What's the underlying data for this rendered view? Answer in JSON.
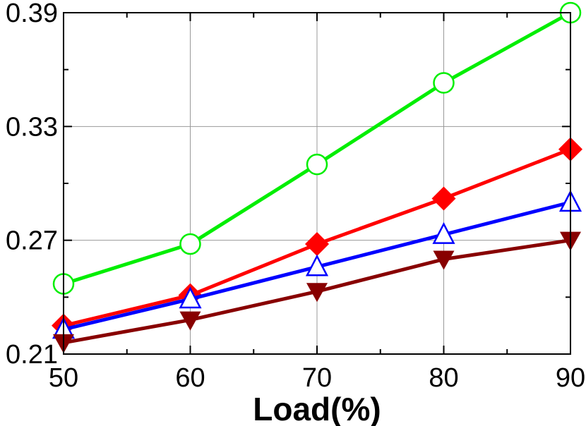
{
  "chart_data": {
    "type": "line",
    "xlabel": "Load(%)",
    "ylabel": "",
    "x": [
      50,
      60,
      70,
      80,
      90
    ],
    "xlim": [
      50,
      90
    ],
    "ylim": [
      0.21,
      0.39
    ],
    "xticks": [
      "50",
      "60",
      "70",
      "80",
      "90"
    ],
    "yticks": [
      "0.21",
      "0.27",
      "0.33",
      "0.39"
    ],
    "grid": true,
    "series": [
      {
        "marker": "circle-open",
        "color": "#00ee00",
        "values": [
          0.247,
          0.268,
          0.31,
          0.353,
          0.39
        ]
      },
      {
        "marker": "diamond-filled",
        "color": "#ff0000",
        "values": [
          0.225,
          0.241,
          0.268,
          0.292,
          0.318
        ]
      },
      {
        "marker": "triangle-up-open",
        "color": "#0000ff",
        "values": [
          0.223,
          0.239,
          0.256,
          0.273,
          0.29
        ]
      },
      {
        "marker": "triangle-down-filled",
        "color": "#880000",
        "values": [
          0.216,
          0.228,
          0.243,
          0.26,
          0.27
        ]
      }
    ]
  }
}
